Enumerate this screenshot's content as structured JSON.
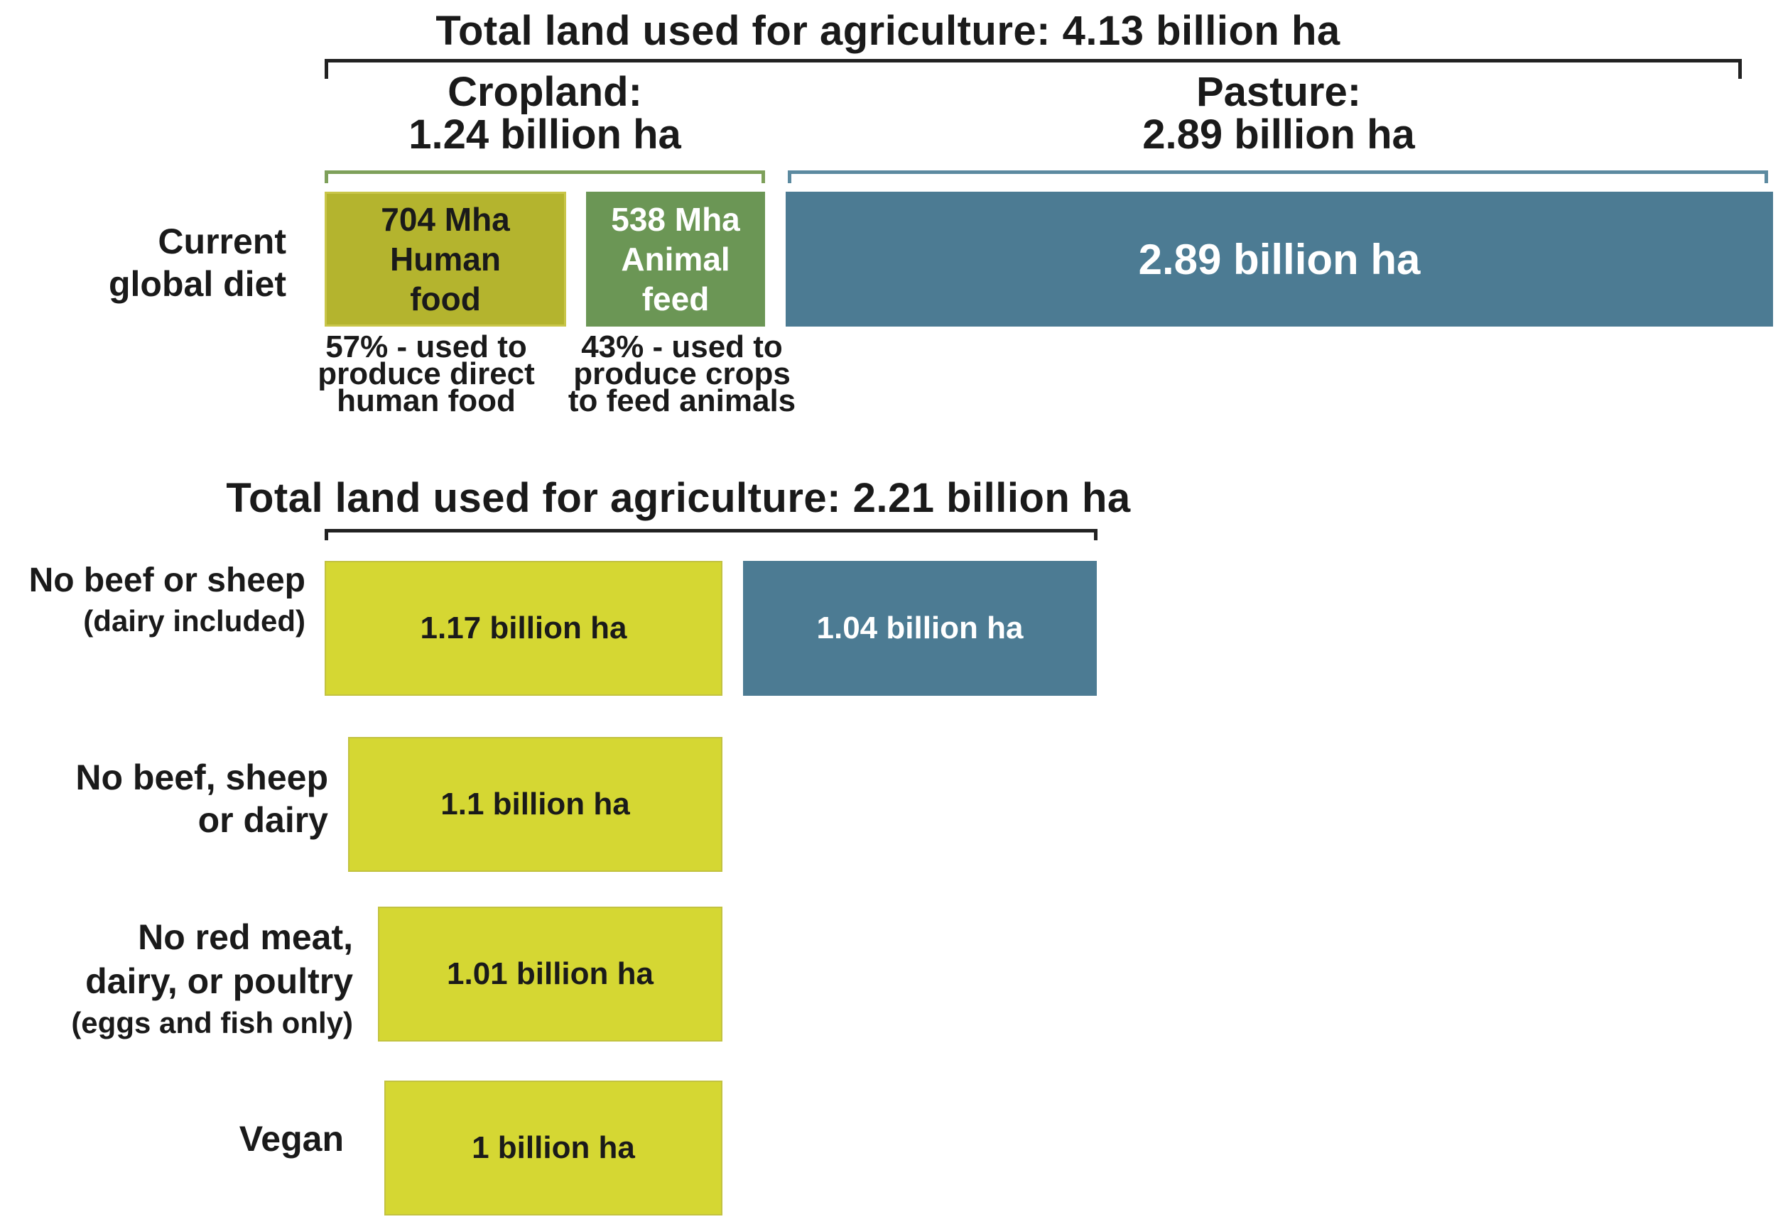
{
  "chart_data": [
    {
      "type": "bar",
      "title": "Total land used for agriculture: 4.13 billion ha",
      "row_label": "Current global diet",
      "groups": [
        {
          "label": "Cropland:",
          "value_label": "1.24 billion ha",
          "segments": [
            {
              "name": "Human food",
              "value_mha": 704,
              "text": "704 Mha\nHuman\nfood",
              "note": "57% - used to produce direct human food",
              "color": "#b4b42e"
            },
            {
              "name": "Animal feed",
              "value_mha": 538,
              "text": "538 Mha\nAnimal\nfeed",
              "note": "43% - used to produce crops to feed animals",
              "color": "#6b9655"
            }
          ]
        },
        {
          "label": "Pasture:",
          "value_label": "2.89 billion ha",
          "segments": [
            {
              "name": "Pasture",
              "value_mha": 2890,
              "text": "2.89 billion ha",
              "color": "#4c7b93"
            }
          ]
        }
      ]
    },
    {
      "type": "bar",
      "title": "Total land used for agriculture: 2.21 billion ha",
      "unit": "billion ha",
      "rows": [
        {
          "label": "No beef or sheep",
          "sublabel": "(dairy included)",
          "bars": [
            {
              "value": 1.17,
              "text": "1.17 billion ha",
              "color": "#d5d733",
              "kind": "cropland"
            },
            {
              "value": 1.04,
              "text": "1.04 billion ha",
              "color": "#4c7b93",
              "kind": "pasture"
            }
          ]
        },
        {
          "label": "No beef, sheep\nor dairy",
          "sublabel": "",
          "bars": [
            {
              "value": 1.1,
              "text": "1.1 billion ha",
              "color": "#d5d733",
              "kind": "cropland"
            }
          ]
        },
        {
          "label": "No red meat,\ndairy, or poultry",
          "sublabel": "(eggs and fish only)",
          "bars": [
            {
              "value": 1.01,
              "text": "1.01 billion ha",
              "color": "#d5d733",
              "kind": "cropland"
            }
          ]
        },
        {
          "label": "Vegan",
          "sublabel": "",
          "bars": [
            {
              "value": 1.0,
              "text": "1 billion ha",
              "color": "#d5d733",
              "kind": "cropland"
            }
          ]
        }
      ]
    }
  ]
}
